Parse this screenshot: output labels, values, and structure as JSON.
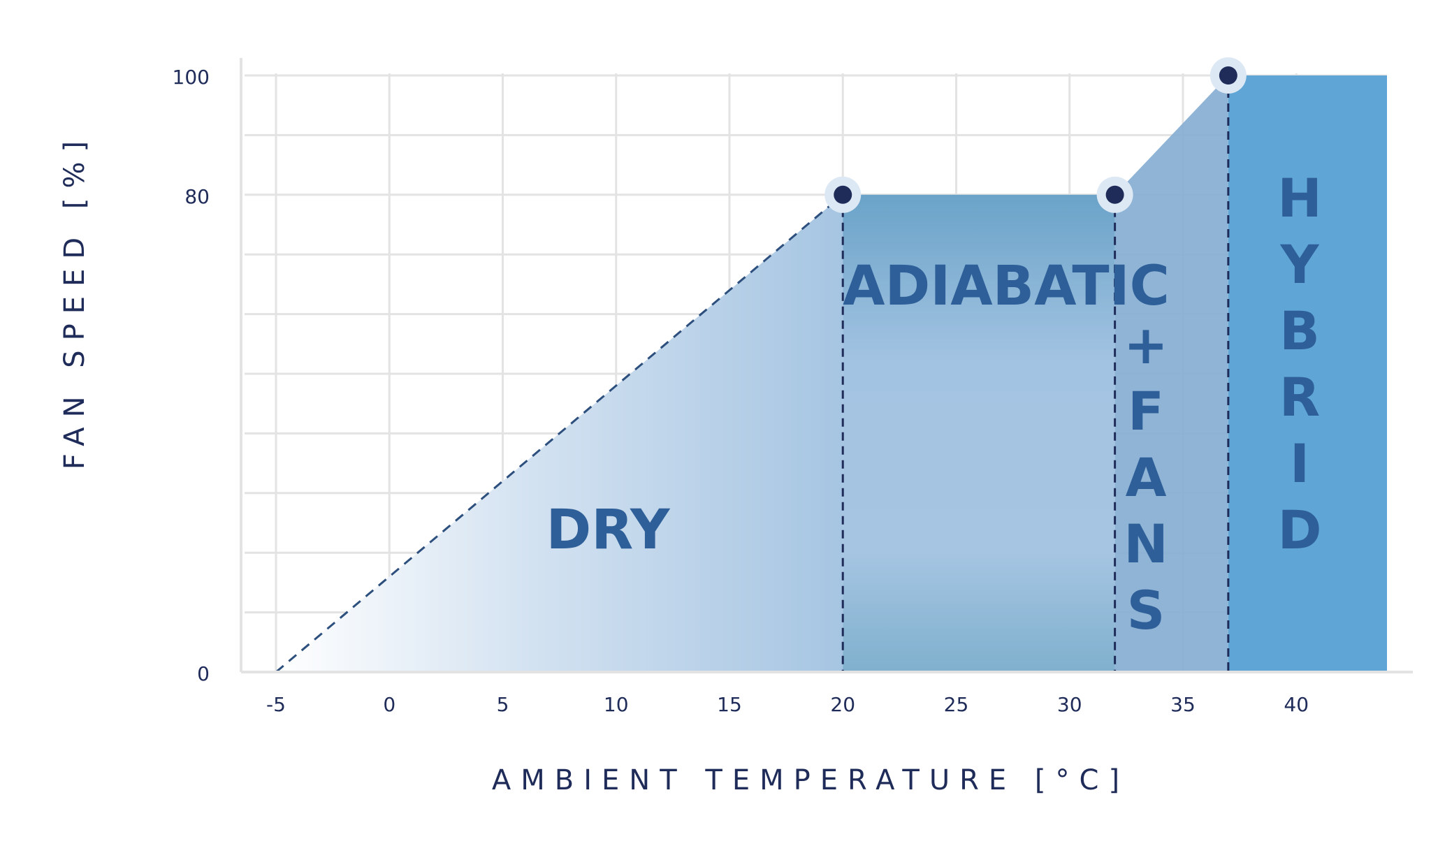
{
  "chart_data": {
    "type": "area",
    "title": "",
    "xlabel": "AMBIENT TEMPERATURE [°C]",
    "ylabel": "FAN SPEED [%]",
    "x_ticks": [
      "-5",
      "0",
      "5",
      "10",
      "15",
      "20",
      "25",
      "30",
      "35",
      "40"
    ],
    "y_ticks": [
      "0",
      "80",
      "100"
    ],
    "xlim": [
      -5,
      44
    ],
    "ylim": [
      0,
      100
    ],
    "grid": true,
    "series": [
      {
        "x": [
          -5,
          20,
          32,
          37,
          44
        ],
        "y": [
          0,
          80,
          80,
          100,
          100
        ]
      }
    ],
    "breakpoints": [
      {
        "x": 20,
        "y": 80
      },
      {
        "x": 32,
        "y": 80
      },
      {
        "x": 37,
        "y": 100
      }
    ],
    "zones": [
      {
        "label": "DRY",
        "from": -5,
        "to": 20
      },
      {
        "label": "ADIABATIC",
        "from": 20,
        "to": 32
      },
      {
        "label": "+FANS",
        "from": 32,
        "to": 37
      },
      {
        "label": "HYBRID",
        "from": 37,
        "to": 44
      }
    ],
    "colors": {
      "axis_text": "#1f2c59",
      "zone_text": "#2e5f98",
      "grid": "#e3e3e3",
      "hybrid_fill": "#5fa5d6",
      "fans_fill": "#86aed3",
      "dashed_line": "#2d4f7d",
      "marker": "#1f2c59",
      "marker_halo": "#dce8f4"
    }
  }
}
